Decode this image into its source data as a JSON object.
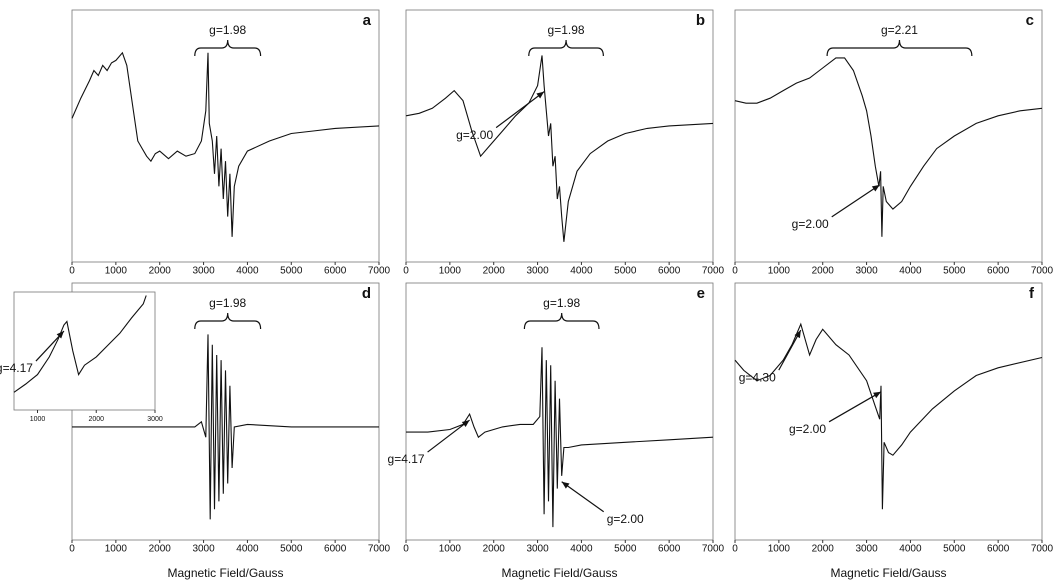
{
  "chart_data": [
    {
      "type": "line",
      "label": "a",
      "xlim": [
        0,
        7000
      ],
      "xticks": [
        0,
        1000,
        2000,
        3000,
        4000,
        5000,
        6000,
        7000
      ],
      "ylim": [
        0,
        100
      ],
      "color": "#111111",
      "x": [
        0,
        200,
        400,
        500,
        600,
        700,
        800,
        900,
        1000,
        1150,
        1250,
        1400,
        1500,
        1600,
        1700,
        1800,
        1900,
        2000,
        2200,
        2400,
        2600,
        2800,
        2950,
        3050,
        3100,
        3130,
        3200,
        3250,
        3300,
        3350,
        3400,
        3450,
        3500,
        3550,
        3600,
        3650,
        3700,
        3800,
        4000,
        4500,
        5000,
        5500,
        6000,
        7000
      ],
      "values": [
        57,
        65,
        72,
        76,
        74,
        78,
        76,
        79,
        80,
        83,
        78,
        60,
        48,
        45,
        42,
        40,
        43,
        44,
        41,
        44,
        42,
        43,
        48,
        60,
        83,
        55,
        48,
        35,
        50,
        30,
        45,
        25,
        40,
        18,
        35,
        10,
        30,
        38,
        44,
        48,
        51,
        52,
        53,
        54
      ],
      "bracket": {
        "label": "g=1.98",
        "x": [
          2800,
          4300
        ]
      }
    },
    {
      "type": "line",
      "label": "b",
      "xlim": [
        0,
        7000
      ],
      "xticks": [
        0,
        1000,
        2000,
        3000,
        4000,
        5000,
        6000,
        7000
      ],
      "ylim": [
        0,
        100
      ],
      "color": "#111111",
      "x": [
        0,
        300,
        600,
        900,
        1100,
        1300,
        1500,
        1700,
        1900,
        2200,
        2500,
        2800,
        3000,
        3100,
        3150,
        3200,
        3250,
        3300,
        3350,
        3400,
        3450,
        3500,
        3550,
        3600,
        3700,
        3900,
        4200,
        4600,
        5000,
        5500,
        6000,
        7000
      ],
      "values": [
        58,
        59,
        61,
        65,
        68,
        64,
        52,
        42,
        46,
        52,
        58,
        63,
        70,
        82,
        70,
        60,
        50,
        55,
        38,
        42,
        25,
        30,
        18,
        8,
        24,
        36,
        43,
        48,
        51,
        53,
        54,
        55
      ],
      "bracket": {
        "label": "g=1.98",
        "x": [
          2800,
          4500
        ]
      },
      "arrows": [
        {
          "text": "g=2.00",
          "x": 3150
        }
      ]
    },
    {
      "type": "line",
      "label": "c",
      "xlim": [
        0,
        7000
      ],
      "xticks": [
        0,
        1000,
        2000,
        3000,
        4000,
        5000,
        6000,
        7000
      ],
      "ylim": [
        0,
        100
      ],
      "color": "#111111",
      "x": [
        0,
        250,
        500,
        800,
        1100,
        1400,
        1700,
        2000,
        2300,
        2500,
        2700,
        2900,
        3000,
        3100,
        3200,
        3280,
        3320,
        3350,
        3380,
        3450,
        3600,
        3800,
        4000,
        4300,
        4600,
        5000,
        5500,
        6000,
        6500,
        7000
      ],
      "values": [
        64,
        63,
        63,
        65,
        68,
        71,
        73,
        77,
        81,
        81,
        76,
        66,
        60,
        50,
        38,
        30,
        36,
        10,
        30,
        24,
        21,
        24,
        30,
        38,
        45,
        50,
        55,
        58,
        60,
        61
      ],
      "bracket": {
        "label": "g=2.21",
        "x": [
          2100,
          5400
        ]
      },
      "arrows": [
        {
          "text": "g=2.00",
          "x": 3300
        }
      ]
    },
    {
      "type": "line",
      "label": "d",
      "xlim": [
        0,
        7000
      ],
      "xticks": [
        0,
        1000,
        2000,
        3000,
        4000,
        5000,
        6000,
        7000
      ],
      "ylim": [
        0,
        100
      ],
      "color": "#111111",
      "xlabel": "Magnetic Field/Gauss",
      "x": [
        0,
        1000,
        2000,
        2800,
        2950,
        3050,
        3100,
        3150,
        3200,
        3250,
        3300,
        3350,
        3400,
        3450,
        3500,
        3550,
        3600,
        3650,
        3700,
        4000,
        5000,
        6000,
        7000
      ],
      "values": [
        44,
        44,
        44,
        44,
        46,
        40,
        80,
        8,
        76,
        12,
        72,
        15,
        70,
        18,
        66,
        22,
        60,
        28,
        44,
        45,
        44,
        44,
        44
      ],
      "bracket": {
        "label": "g=1.98",
        "x": [
          2800,
          4300
        ]
      },
      "inset": {
        "type": "line",
        "xlim": [
          600,
          3000
        ],
        "xticks": [
          1000,
          2000,
          3000
        ],
        "ylim": [
          0,
          100
        ],
        "color": "#111111",
        "x": [
          600,
          800,
          1000,
          1200,
          1350,
          1450,
          1500,
          1600,
          1700,
          1800,
          2000,
          2200,
          2400,
          2600,
          2800,
          2850
        ],
        "values": [
          15,
          22,
          30,
          45,
          60,
          72,
          75,
          50,
          30,
          38,
          45,
          55,
          65,
          78,
          90,
          97
        ],
        "arrows": [
          {
            "text": "g=4.17",
            "x": 1450
          }
        ]
      }
    },
    {
      "type": "line",
      "label": "e",
      "xlim": [
        0,
        7000
      ],
      "xticks": [
        0,
        1000,
        2000,
        3000,
        4000,
        5000,
        6000,
        7000
      ],
      "ylim": [
        0,
        100
      ],
      "color": "#111111",
      "xlabel": "Magnetic Field/Gauss",
      "x": [
        0,
        500,
        1000,
        1300,
        1450,
        1550,
        1650,
        1800,
        2200,
        2600,
        2900,
        3050,
        3100,
        3150,
        3200,
        3250,
        3300,
        3350,
        3400,
        3450,
        3500,
        3550,
        3600,
        3700,
        4000,
        5000,
        6000,
        7000
      ],
      "values": [
        42,
        42,
        43,
        45,
        49,
        44,
        40,
        42,
        44,
        45,
        45,
        48,
        75,
        10,
        70,
        15,
        68,
        5,
        62,
        20,
        55,
        25,
        36,
        36,
        37,
        38,
        39,
        40
      ],
      "bracket": {
        "label": "g=1.98",
        "x": [
          2700,
          4400
        ]
      },
      "arrows": [
        {
          "text": "g=4.17",
          "x": 1450
        },
        {
          "text": "g=2.00",
          "x": 3550
        }
      ]
    },
    {
      "type": "line",
      "label": "f",
      "xlim": [
        0,
        7000
      ],
      "xticks": [
        0,
        1000,
        2000,
        3000,
        4000,
        5000,
        6000,
        7000
      ],
      "ylim": [
        0,
        100
      ],
      "color": "#111111",
      "xlabel": "Magnetic Field/Gauss",
      "x": [
        0,
        200,
        500,
        800,
        1100,
        1300,
        1500,
        1700,
        1850,
        2000,
        2300,
        2600,
        3000,
        3200,
        3300,
        3330,
        3360,
        3400,
        3500,
        3600,
        3800,
        4000,
        4500,
        5000,
        5500,
        6000,
        7000
      ],
      "values": [
        70,
        66,
        62,
        64,
        70,
        76,
        84,
        72,
        78,
        82,
        76,
        72,
        62,
        52,
        47,
        60,
        12,
        38,
        34,
        33,
        37,
        42,
        51,
        58,
        64,
        67,
        71
      ],
      "arrows": [
        {
          "text": "g=4.30",
          "x": 1500
        },
        {
          "text": "g=2.00",
          "x": 3330
        }
      ]
    }
  ]
}
